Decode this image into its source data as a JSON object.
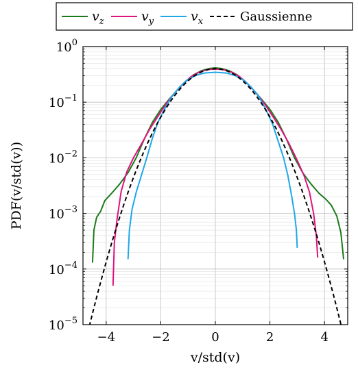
{
  "chart_data": {
    "type": "line",
    "xlabel": "v/std(v)",
    "ylabel": "PDF(v/std(v))",
    "xlim": [
      -4.85,
      4.85
    ],
    "ylim": [
      1e-05,
      1
    ],
    "yscale": "log",
    "grid": true,
    "legend_position": "top, above plot",
    "x_ticks": [
      -4,
      -2,
      0,
      2,
      4
    ],
    "x_tick_labels": [
      "−4",
      "−2",
      "0",
      "2",
      "4"
    ],
    "y_ticks": [
      1e-05,
      0.0001,
      0.001,
      0.01,
      0.1,
      1
    ],
    "y_tick_labels": [
      {
        "base": "10",
        "exp": "−5"
      },
      {
        "base": "10",
        "exp": "−4"
      },
      {
        "base": "10",
        "exp": "−3"
      },
      {
        "base": "10",
        "exp": "−2"
      },
      {
        "base": "10",
        "exp": "−1"
      },
      {
        "base": "10",
        "exp": "0"
      }
    ],
    "series": [
      {
        "name_base": "v",
        "name_sub": "z",
        "color": "#1a7a1a",
        "dash": false,
        "points": [
          [
            -4.5,
            0.00013
          ],
          [
            -4.45,
            0.0005
          ],
          [
            -4.35,
            0.00085
          ],
          [
            -4.2,
            0.0011
          ],
          [
            -4.05,
            0.0017
          ],
          [
            -3.8,
            0.0023
          ],
          [
            -3.5,
            0.0034
          ],
          [
            -3.2,
            0.0054
          ],
          [
            -2.9,
            0.01
          ],
          [
            -2.6,
            0.022
          ],
          [
            -2.3,
            0.044
          ],
          [
            -2.0,
            0.074
          ],
          [
            -1.7,
            0.112
          ],
          [
            -1.4,
            0.165
          ],
          [
            -1.1,
            0.235
          ],
          [
            -0.8,
            0.31
          ],
          [
            -0.5,
            0.37
          ],
          [
            -0.2,
            0.405
          ],
          [
            0.0,
            0.415
          ],
          [
            0.2,
            0.405
          ],
          [
            0.5,
            0.37
          ],
          [
            0.8,
            0.31
          ],
          [
            1.1,
            0.235
          ],
          [
            1.4,
            0.165
          ],
          [
            1.7,
            0.112
          ],
          [
            2.0,
            0.074
          ],
          [
            2.3,
            0.044
          ],
          [
            2.6,
            0.022
          ],
          [
            2.9,
            0.01
          ],
          [
            3.2,
            0.0054
          ],
          [
            3.5,
            0.0034
          ],
          [
            3.8,
            0.0023
          ],
          [
            4.05,
            0.0018
          ],
          [
            4.25,
            0.0014
          ],
          [
            4.45,
            0.0009
          ],
          [
            4.6,
            0.00045
          ],
          [
            4.7,
            0.00015
          ]
        ]
      },
      {
        "name_base": "v",
        "name_sub": "y",
        "color": "#e0127f",
        "dash": false,
        "points": [
          [
            -3.75,
            5e-05
          ],
          [
            -3.7,
            0.0003
          ],
          [
            -3.6,
            0.0008
          ],
          [
            -3.45,
            0.0025
          ],
          [
            -3.25,
            0.0055
          ],
          [
            -3.0,
            0.01
          ],
          [
            -2.7,
            0.018
          ],
          [
            -2.4,
            0.033
          ],
          [
            -2.1,
            0.056
          ],
          [
            -1.8,
            0.094
          ],
          [
            -1.5,
            0.145
          ],
          [
            -1.2,
            0.21
          ],
          [
            -0.9,
            0.285
          ],
          [
            -0.6,
            0.345
          ],
          [
            -0.3,
            0.385
          ],
          [
            0.0,
            0.395
          ],
          [
            0.3,
            0.385
          ],
          [
            0.6,
            0.345
          ],
          [
            0.9,
            0.285
          ],
          [
            1.2,
            0.21
          ],
          [
            1.5,
            0.145
          ],
          [
            1.8,
            0.094
          ],
          [
            2.1,
            0.056
          ],
          [
            2.4,
            0.033
          ],
          [
            2.7,
            0.018
          ],
          [
            3.0,
            0.009
          ],
          [
            3.25,
            0.0048
          ],
          [
            3.45,
            0.0024
          ],
          [
            3.6,
            0.001
          ],
          [
            3.7,
            0.0004
          ],
          [
            3.75,
            0.00016
          ]
        ]
      },
      {
        "name_base": "v",
        "name_sub": "x",
        "color": "#1ea8e8",
        "dash": false,
        "points": [
          [
            -3.2,
            0.00015
          ],
          [
            -3.15,
            0.0005
          ],
          [
            -3.05,
            0.0012
          ],
          [
            -2.9,
            0.0024
          ],
          [
            -2.7,
            0.005
          ],
          [
            -2.5,
            0.0105
          ],
          [
            -2.3,
            0.023
          ],
          [
            -2.1,
            0.044
          ],
          [
            -1.85,
            0.077
          ],
          [
            -1.6,
            0.125
          ],
          [
            -1.3,
            0.19
          ],
          [
            -1.0,
            0.255
          ],
          [
            -0.7,
            0.305
          ],
          [
            -0.4,
            0.335
          ],
          [
            0.0,
            0.345
          ],
          [
            0.4,
            0.335
          ],
          [
            0.7,
            0.305
          ],
          [
            1.0,
            0.255
          ],
          [
            1.3,
            0.19
          ],
          [
            1.6,
            0.125
          ],
          [
            1.85,
            0.074
          ],
          [
            2.1,
            0.04
          ],
          [
            2.3,
            0.02
          ],
          [
            2.5,
            0.01
          ],
          [
            2.65,
            0.005
          ],
          [
            2.8,
            0.002
          ],
          [
            2.9,
            0.001
          ],
          [
            2.97,
            0.0005
          ],
          [
            3.0,
            0.00024
          ]
        ]
      },
      {
        "name": "Gaussienne",
        "color": "#000000",
        "dash": true,
        "function": "gaussian",
        "mean": 0,
        "std": 1
      }
    ]
  }
}
